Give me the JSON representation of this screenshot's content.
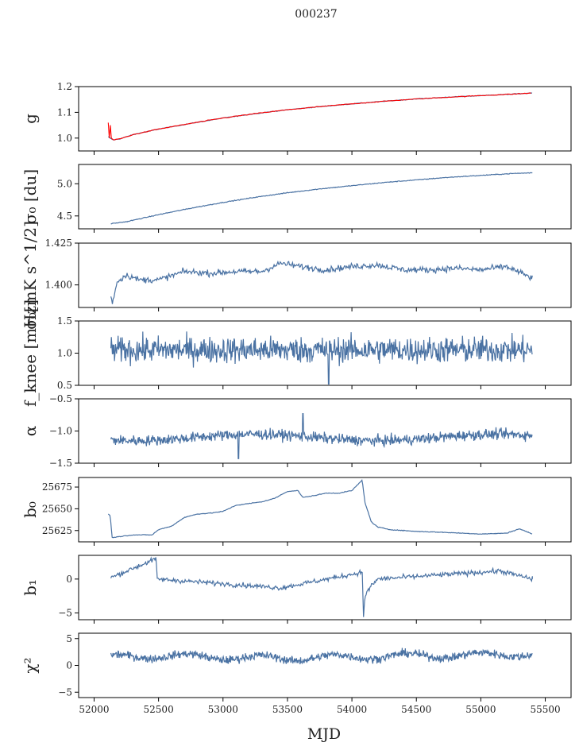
{
  "figure": {
    "title": "000237",
    "xlabel": "MJD"
  },
  "colors": {
    "line": "#4a72a3",
    "fit": "#ff0000",
    "axis": "#000000"
  },
  "chart_data": [
    {
      "type": "line",
      "name": "g",
      "ylabel": "g",
      "xlim": [
        51880,
        55700
      ],
      "ylim": [
        0.95,
        1.2
      ],
      "yticks": [
        1.0,
        1.1,
        1.2
      ],
      "ytick_labels": [
        "1.0",
        "1.1",
        "1.2"
      ],
      "series": [
        {
          "name": "g",
          "x": [
            52110,
            52130,
            52150,
            52200,
            52300,
            52500,
            52750,
            53000,
            53250,
            53500,
            53750,
            54000,
            54250,
            54500,
            54750,
            55000,
            55250,
            55400
          ],
          "y": [
            1.005,
            0.998,
            0.993,
            0.997,
            1.013,
            1.035,
            1.057,
            1.078,
            1.095,
            1.11,
            1.122,
            1.133,
            1.143,
            1.152,
            1.159,
            1.165,
            1.171,
            1.175
          ]
        },
        {
          "name": "red-fit",
          "x": [
            52110,
            52118,
            52126,
            52134,
            52150,
            52200,
            52300,
            52500,
            52750,
            53000,
            53250,
            53500,
            53750,
            54000,
            54250,
            54500,
            54750,
            55000,
            55250,
            55400
          ],
          "y": [
            1.06,
            1.0,
            1.05,
            1.0,
            0.993,
            0.997,
            1.013,
            1.035,
            1.057,
            1.078,
            1.095,
            1.11,
            1.122,
            1.133,
            1.143,
            1.152,
            1.159,
            1.165,
            1.171,
            1.175
          ]
        }
      ]
    },
    {
      "type": "line",
      "name": "sigma0-du",
      "ylabel": "σ₀ [du]",
      "xlim": [
        51880,
        55700
      ],
      "ylim": [
        4.3,
        5.3
      ],
      "yticks": [
        4.5,
        5.0
      ],
      "ytick_labels": [
        "4.5",
        "5.0"
      ],
      "series": [
        {
          "name": "sigma0",
          "x": [
            52130,
            52250,
            52500,
            52750,
            53000,
            53250,
            53500,
            53750,
            54000,
            54250,
            54500,
            54750,
            55000,
            55250,
            55400
          ],
          "y": [
            4.38,
            4.41,
            4.52,
            4.62,
            4.71,
            4.79,
            4.86,
            4.92,
            4.97,
            5.02,
            5.06,
            5.1,
            5.13,
            5.16,
            5.17
          ]
        }
      ]
    },
    {
      "type": "line",
      "name": "sigma0-mK",
      "ylabel": "σ₀[mK s^1/2]",
      "xlim": [
        51880,
        55700
      ],
      "ylim": [
        1.3865,
        1.425
      ],
      "yticks": [
        1.4,
        1.425
      ],
      "ytick_labels": [
        "1.400",
        "1.425"
      ],
      "series": [
        {
          "name": "sigma0-mK",
          "x": [
            52130,
            52140,
            52180,
            52250,
            52350,
            52500,
            52700,
            52900,
            53100,
            53300,
            53450,
            53600,
            53800,
            54000,
            54200,
            54400,
            54600,
            54800,
            55000,
            55200,
            55400
          ],
          "y": [
            1.394,
            1.389,
            1.402,
            1.406,
            1.403,
            1.403,
            1.408,
            1.407,
            1.408,
            1.408,
            1.413,
            1.411,
            1.409,
            1.411,
            1.412,
            1.409,
            1.409,
            1.41,
            1.409,
            1.411,
            1.404
          ]
        }
      ]
    },
    {
      "type": "line",
      "name": "f-knee",
      "ylabel": "f_knee [mHz]",
      "xlim": [
        51880,
        55700
      ],
      "ylim": [
        0.5,
        1.5
      ],
      "yticks": [
        0.5,
        1.0,
        1.5
      ],
      "ytick_labels": [
        "0.5",
        "1.0",
        "1.5"
      ],
      "series": [
        {
          "name": "fknee",
          "x": [
            52130,
            53820,
            55400
          ],
          "y": [
            1.05,
            0.52,
            0.95
          ]
        }
      ]
    },
    {
      "type": "line",
      "name": "alpha",
      "ylabel": "α",
      "xlim": [
        51880,
        55700
      ],
      "ylim": [
        -1.5,
        -0.5
      ],
      "yticks": [
        -1.5,
        -1.0,
        -0.5
      ],
      "ytick_labels": [
        "−1.5",
        "−1.0",
        "−0.5"
      ],
      "series": [
        {
          "name": "alpha",
          "x": [
            52130,
            53620,
            53120,
            55400
          ],
          "y": [
            -1.1,
            -0.73,
            -1.43,
            -1.05
          ]
        }
      ]
    },
    {
      "type": "line",
      "name": "b0",
      "ylabel": "b₀",
      "xlim": [
        51880,
        55700
      ],
      "ylim": [
        25612,
        25686
      ],
      "yticks": [
        25625,
        25650,
        25675
      ],
      "ytick_labels": [
        "25625",
        "25650",
        "25675"
      ],
      "series": [
        {
          "name": "b0",
          "x": [
            52110,
            52125,
            52140,
            52300,
            52450,
            52500,
            52600,
            52700,
            52800,
            52900,
            53000,
            53100,
            53200,
            53300,
            53400,
            53500,
            53580,
            53620,
            53700,
            53800,
            53900,
            54000,
            54060,
            54080,
            54100,
            54150,
            54200,
            54300,
            54500,
            54700,
            55000,
            55200,
            55300,
            55400
          ],
          "y": [
            25644,
            25642,
            25617,
            25620,
            25620,
            25626,
            25630,
            25640,
            25644,
            25645,
            25647,
            25654,
            25656,
            25658,
            25662,
            25670,
            25671,
            25663,
            25665,
            25668,
            25668,
            25671,
            25680,
            25683,
            25658,
            25635,
            25629,
            25626,
            25624,
            25623,
            25621,
            25622,
            25627,
            25621
          ]
        }
      ]
    },
    {
      "type": "line",
      "name": "b1",
      "ylabel": "b₁",
      "xlim": [
        51880,
        55700
      ],
      "ylim": [
        -6,
        3.5
      ],
      "yticks": [
        -5,
        0
      ],
      "ytick_labels": [
        "−5",
        "0"
      ],
      "series": [
        {
          "name": "b1",
          "x": [
            52130,
            52480,
            52490,
            53450,
            54080,
            54090,
            54100,
            54150,
            54200,
            55150,
            55400
          ],
          "y": [
            0.2,
            3.0,
            0.0,
            -1.3,
            1.0,
            -5.6,
            -2.5,
            -1.0,
            0.0,
            1.2,
            0.0
          ]
        }
      ]
    },
    {
      "type": "line",
      "name": "chi2",
      "ylabel": "χ²",
      "xlim": [
        51880,
        55700
      ],
      "ylim": [
        -6,
        6
      ],
      "yticks": [
        -5,
        0,
        5
      ],
      "ytick_labels": [
        "−5",
        "0",
        "5"
      ],
      "xticks": [
        52000,
        52500,
        53000,
        53500,
        54000,
        54500,
        55000,
        55500
      ],
      "xtick_labels": [
        "52000",
        "52500",
        "53000",
        "53500",
        "54000",
        "54500",
        "55000",
        "55500"
      ],
      "series": [
        {
          "name": "chi2",
          "x": [
            52130,
            52500,
            53000,
            53500,
            54000,
            54500,
            55000,
            55400
          ],
          "y": [
            1.5,
            1.8,
            1.5,
            1.3,
            1.6,
            1.8,
            1.9,
            2.2
          ]
        }
      ]
    }
  ]
}
